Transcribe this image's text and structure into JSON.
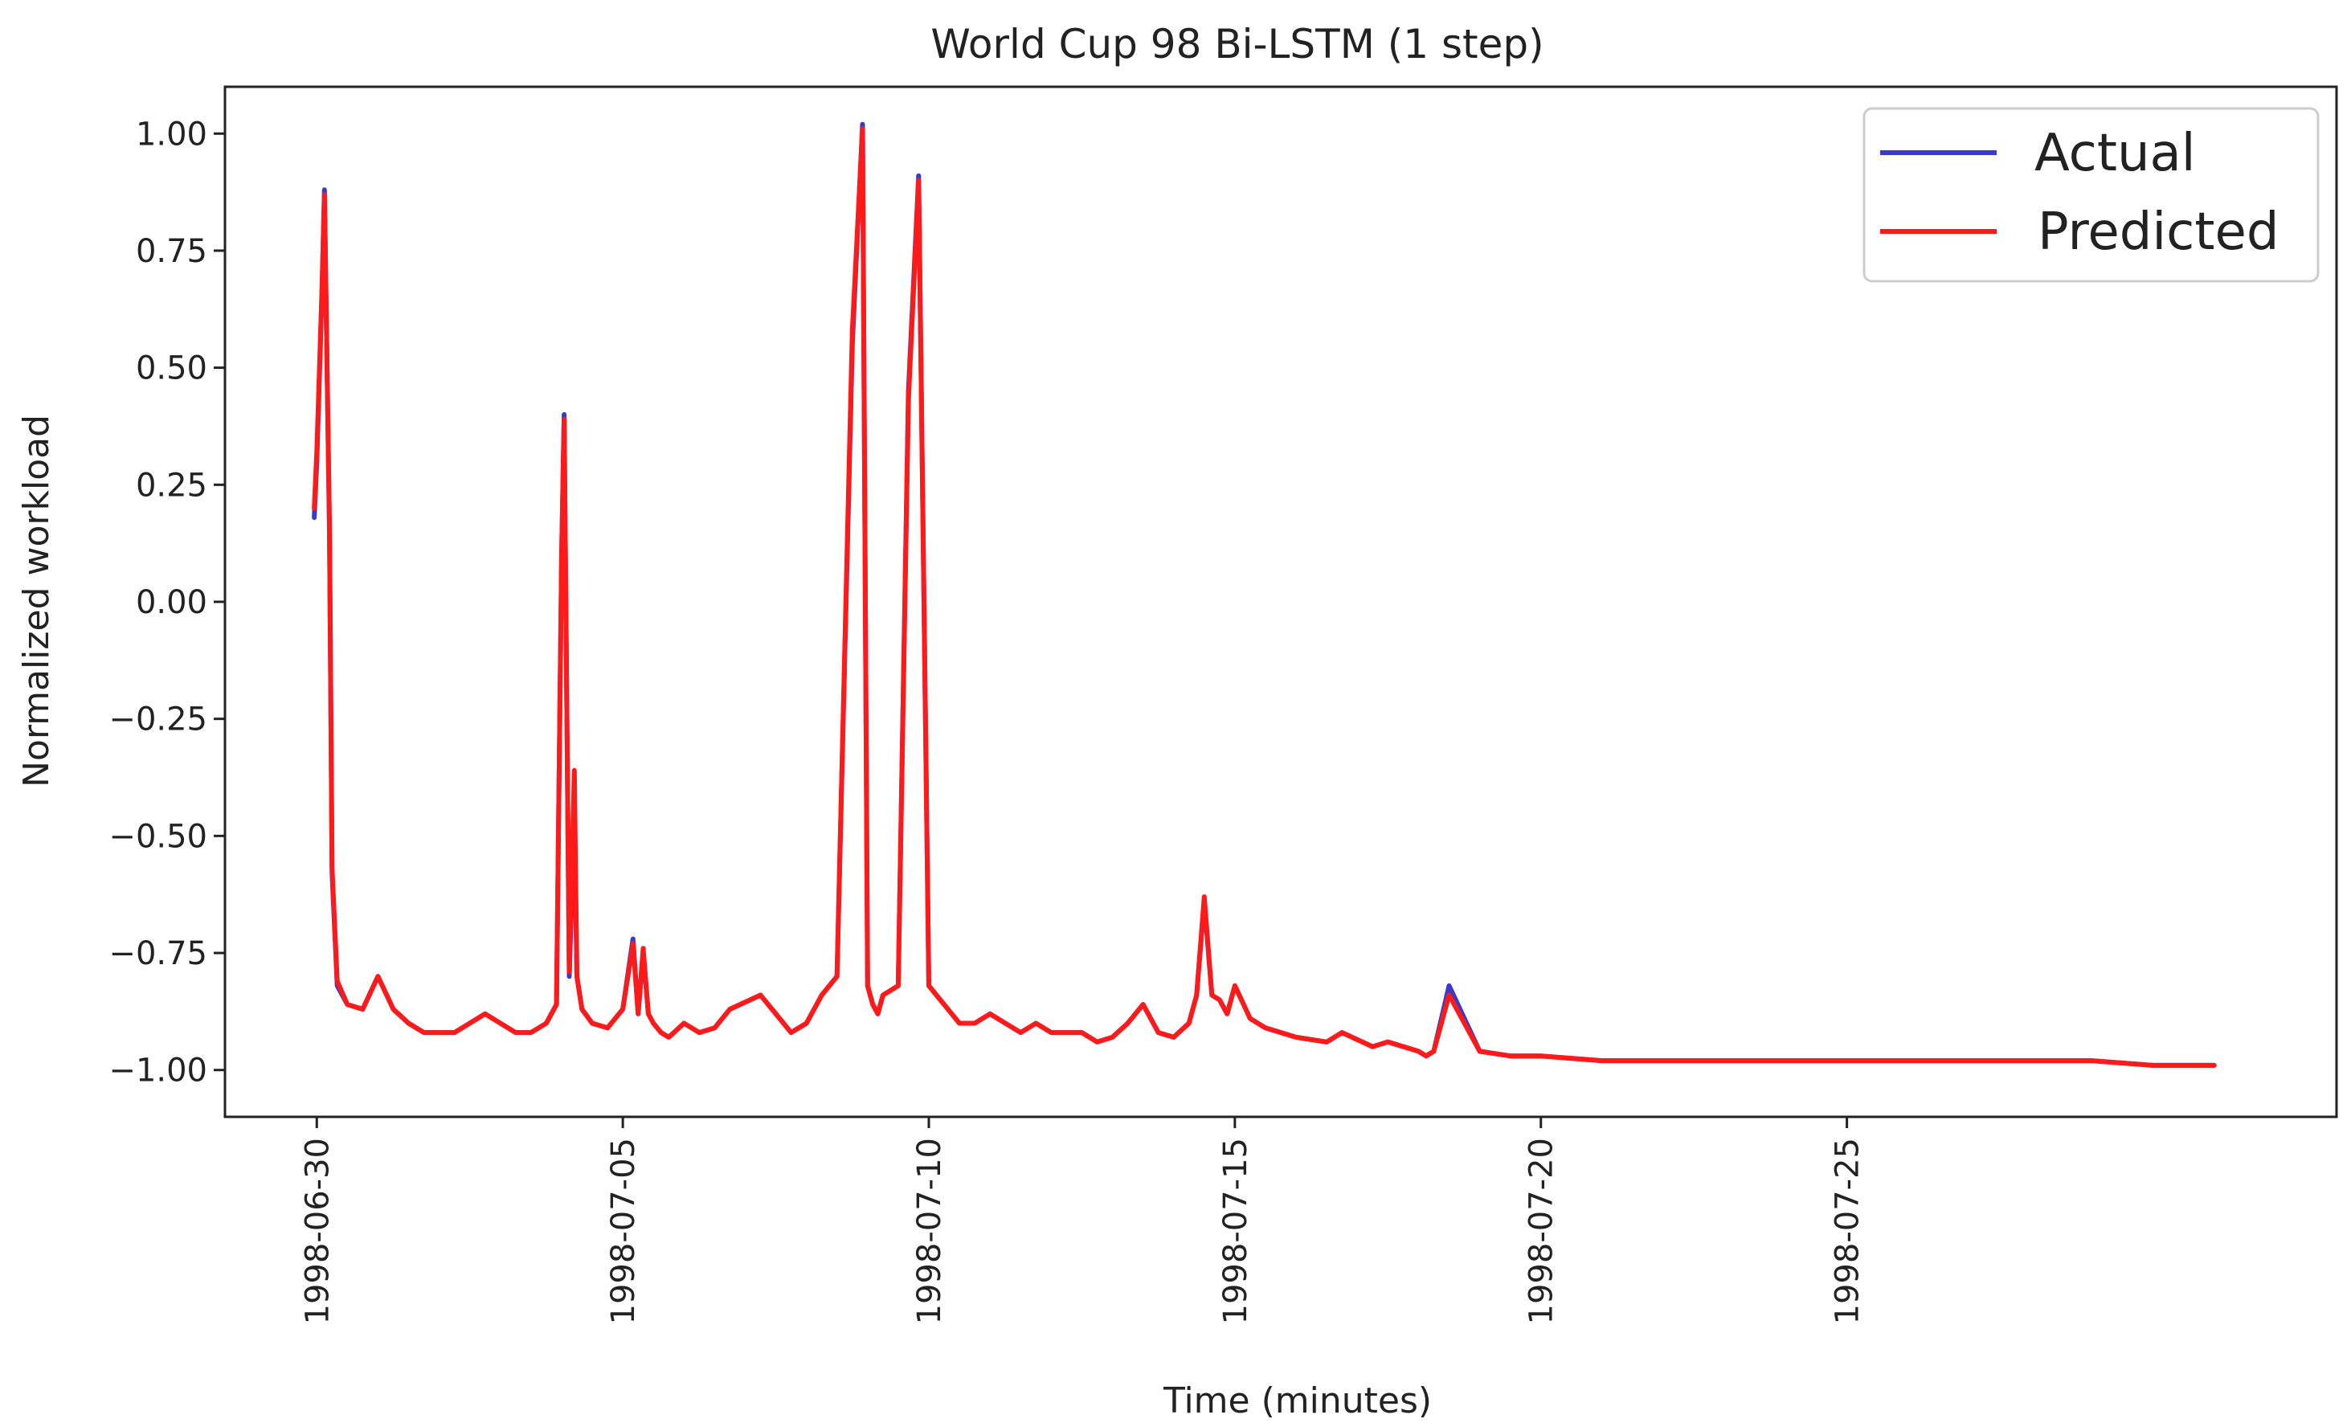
{
  "chart_data": {
    "type": "line",
    "title": "World Cup 98 Bi-LSTM (1 step)",
    "xlabel": "Time (minutes)",
    "ylabel": "Normalized workload",
    "xlim": [
      "1998-06-28 12:00",
      "1998-08-02 00:00"
    ],
    "ylim": [
      -1.1,
      1.1
    ],
    "yticks": [
      1.0,
      0.75,
      0.5,
      0.25,
      0.0,
      -0.25,
      -0.5,
      -0.75,
      -1.0
    ],
    "ytick_labels": [
      "1.00",
      "0.75",
      "0.50",
      "0.25",
      "0.00",
      "−0.25",
      "−0.50",
      "−0.75",
      "−1.00"
    ],
    "xticks": [
      "1998-06-30",
      "1998-07-05",
      "1998-07-10",
      "1998-07-15",
      "1998-07-20",
      "1998-07-25"
    ],
    "grid": false,
    "legend_position": "top-right",
    "series": [
      {
        "name": "Actual",
        "color": "#3b3bc9",
        "x": [
          "1998-06-29 23:00",
          "1998-06-30 00:00",
          "1998-06-30 02:00",
          "1998-06-30 03:00",
          "1998-06-30 05:00",
          "1998-06-30 06:00",
          "1998-06-30 08:00",
          "1998-06-30 12:00",
          "1998-06-30 18:00",
          "1998-07-01 00:00",
          "1998-07-01 06:00",
          "1998-07-01 12:00",
          "1998-07-01 18:00",
          "1998-07-02 06:00",
          "1998-07-02 18:00",
          "1998-07-03 00:00",
          "1998-07-03 06:00",
          "1998-07-03 12:00",
          "1998-07-03 18:00",
          "1998-07-03 22:00",
          "1998-07-04 00:00",
          "1998-07-04 01:00",
          "1998-07-04 03:00",
          "1998-07-04 05:00",
          "1998-07-04 06:00",
          "1998-07-04 08:00",
          "1998-07-04 12:00",
          "1998-07-04 18:00",
          "1998-07-05 00:00",
          "1998-07-05 04:00",
          "1998-07-05 06:00",
          "1998-07-05 08:00",
          "1998-07-05 10:00",
          "1998-07-05 12:00",
          "1998-07-05 15:00",
          "1998-07-05 18:00",
          "1998-07-06 00:00",
          "1998-07-06 06:00",
          "1998-07-06 12:00",
          "1998-07-06 18:00",
          "1998-07-07 06:00",
          "1998-07-07 12:00",
          "1998-07-07 18:00",
          "1998-07-08 00:00",
          "1998-07-08 06:00",
          "1998-07-08 12:00",
          "1998-07-08 18:00",
          "1998-07-08 22:00",
          "1998-07-09 00:00",
          "1998-07-09 02:00",
          "1998-07-09 04:00",
          "1998-07-09 06:00",
          "1998-07-09 12:00",
          "1998-07-09 16:00",
          "1998-07-09 20:00",
          "1998-07-10 00:00",
          "1998-07-10 06:00",
          "1998-07-10 12:00",
          "1998-07-10 18:00",
          "1998-07-11 00:00",
          "1998-07-11 06:00",
          "1998-07-11 12:00",
          "1998-07-11 18:00",
          "1998-07-12 00:00",
          "1998-07-12 12:00",
          "1998-07-12 18:00",
          "1998-07-13 00:00",
          "1998-07-13 06:00",
          "1998-07-13 12:00",
          "1998-07-13 18:00",
          "1998-07-14 00:00",
          "1998-07-14 06:00",
          "1998-07-14 09:00",
          "1998-07-14 12:00",
          "1998-07-14 15:00",
          "1998-07-14 18:00",
          "1998-07-14 21:00",
          "1998-07-15 00:00",
          "1998-07-15 06:00",
          "1998-07-15 12:00",
          "1998-07-16 00:00",
          "1998-07-16 12:00",
          "1998-07-16 18:00",
          "1998-07-17 06:00",
          "1998-07-17 12:00",
          "1998-07-18 00:00",
          "1998-07-18 03:00",
          "1998-07-18 06:00",
          "1998-07-18 12:00",
          "1998-07-19 00:00",
          "1998-07-19 12:00",
          "1998-07-20 00:00",
          "1998-07-21 00:00",
          "1998-07-22 00:00",
          "1998-07-23 00:00",
          "1998-07-24 00:00",
          "1998-07-25 00:00",
          "1998-07-26 00:00",
          "1998-07-27 00:00",
          "1998-07-28 00:00",
          "1998-07-29 00:00",
          "1998-07-30 00:00",
          "1998-07-31 00:00"
        ],
        "y": [
          0.18,
          0.3,
          0.65,
          0.88,
          0.14,
          -0.58,
          -0.82,
          -0.86,
          -0.87,
          -0.8,
          -0.87,
          -0.9,
          -0.92,
          -0.92,
          -0.88,
          -0.9,
          -0.92,
          -0.92,
          -0.9,
          -0.86,
          0.1,
          0.4,
          -0.8,
          -0.45,
          -0.8,
          -0.87,
          -0.9,
          -0.91,
          -0.87,
          -0.72,
          -0.88,
          -0.75,
          -0.88,
          -0.9,
          -0.92,
          -0.93,
          -0.9,
          -0.92,
          -0.91,
          -0.87,
          -0.84,
          -0.88,
          -0.92,
          -0.9,
          -0.84,
          -0.8,
          0.55,
          1.02,
          -0.82,
          -0.86,
          -0.88,
          -0.84,
          -0.82,
          0.45,
          0.91,
          -0.82,
          -0.86,
          -0.9,
          -0.9,
          -0.88,
          -0.9,
          -0.92,
          -0.9,
          -0.92,
          -0.92,
          -0.94,
          -0.93,
          -0.9,
          -0.86,
          -0.92,
          -0.93,
          -0.9,
          -0.84,
          -0.64,
          -0.84,
          -0.85,
          -0.88,
          -0.82,
          -0.89,
          -0.91,
          -0.93,
          -0.94,
          -0.92,
          -0.95,
          -0.94,
          -0.96,
          -0.97,
          -0.96,
          -0.82,
          -0.96,
          -0.97,
          -0.97,
          -0.98,
          -0.98,
          -0.98,
          -0.98,
          -0.98,
          -0.98,
          -0.98,
          -0.98,
          -0.98,
          -0.99,
          -0.99
        ]
      },
      {
        "name": "Predicted",
        "color": "#ff1a1a",
        "x": [
          "1998-06-29 23:00",
          "1998-06-30 00:00",
          "1998-06-30 02:00",
          "1998-06-30 03:00",
          "1998-06-30 05:00",
          "1998-06-30 06:00",
          "1998-06-30 08:00",
          "1998-06-30 12:00",
          "1998-06-30 18:00",
          "1998-07-01 00:00",
          "1998-07-01 06:00",
          "1998-07-01 12:00",
          "1998-07-01 18:00",
          "1998-07-02 06:00",
          "1998-07-02 18:00",
          "1998-07-03 00:00",
          "1998-07-03 06:00",
          "1998-07-03 12:00",
          "1998-07-03 18:00",
          "1998-07-03 22:00",
          "1998-07-04 00:00",
          "1998-07-04 01:00",
          "1998-07-04 03:00",
          "1998-07-04 05:00",
          "1998-07-04 06:00",
          "1998-07-04 08:00",
          "1998-07-04 12:00",
          "1998-07-04 18:00",
          "1998-07-05 00:00",
          "1998-07-05 04:00",
          "1998-07-05 06:00",
          "1998-07-05 08:00",
          "1998-07-05 10:00",
          "1998-07-05 12:00",
          "1998-07-05 15:00",
          "1998-07-05 18:00",
          "1998-07-06 00:00",
          "1998-07-06 06:00",
          "1998-07-06 12:00",
          "1998-07-06 18:00",
          "1998-07-07 06:00",
          "1998-07-07 12:00",
          "1998-07-07 18:00",
          "1998-07-08 00:00",
          "1998-07-08 06:00",
          "1998-07-08 12:00",
          "1998-07-08 18:00",
          "1998-07-08 22:00",
          "1998-07-09 00:00",
          "1998-07-09 02:00",
          "1998-07-09 04:00",
          "1998-07-09 06:00",
          "1998-07-09 12:00",
          "1998-07-09 16:00",
          "1998-07-09 20:00",
          "1998-07-10 00:00",
          "1998-07-10 06:00",
          "1998-07-10 12:00",
          "1998-07-10 18:00",
          "1998-07-11 00:00",
          "1998-07-11 06:00",
          "1998-07-11 12:00",
          "1998-07-11 18:00",
          "1998-07-12 00:00",
          "1998-07-12 12:00",
          "1998-07-12 18:00",
          "1998-07-13 00:00",
          "1998-07-13 06:00",
          "1998-07-13 12:00",
          "1998-07-13 18:00",
          "1998-07-14 00:00",
          "1998-07-14 06:00",
          "1998-07-14 09:00",
          "1998-07-14 12:00",
          "1998-07-14 15:00",
          "1998-07-14 18:00",
          "1998-07-14 21:00",
          "1998-07-15 00:00",
          "1998-07-15 06:00",
          "1998-07-15 12:00",
          "1998-07-16 00:00",
          "1998-07-16 12:00",
          "1998-07-16 18:00",
          "1998-07-17 06:00",
          "1998-07-17 12:00",
          "1998-07-18 00:00",
          "1998-07-18 03:00",
          "1998-07-18 06:00",
          "1998-07-18 12:00",
          "1998-07-19 00:00",
          "1998-07-19 12:00",
          "1998-07-20 00:00",
          "1998-07-21 00:00",
          "1998-07-22 00:00",
          "1998-07-23 00:00",
          "1998-07-24 00:00",
          "1998-07-25 00:00",
          "1998-07-26 00:00",
          "1998-07-27 00:00",
          "1998-07-28 00:00",
          "1998-07-29 00:00",
          "1998-07-30 00:00",
          "1998-07-31 00:00"
        ],
        "y": [
          0.2,
          0.32,
          0.66,
          0.87,
          0.16,
          -0.57,
          -0.81,
          -0.86,
          -0.87,
          -0.8,
          -0.87,
          -0.9,
          -0.92,
          -0.92,
          -0.88,
          -0.9,
          -0.92,
          -0.92,
          -0.9,
          -0.86,
          0.1,
          0.39,
          -0.79,
          -0.36,
          -0.8,
          -0.87,
          -0.9,
          -0.91,
          -0.87,
          -0.73,
          -0.88,
          -0.74,
          -0.88,
          -0.9,
          -0.92,
          -0.93,
          -0.9,
          -0.92,
          -0.91,
          -0.87,
          -0.84,
          -0.88,
          -0.92,
          -0.9,
          -0.84,
          -0.8,
          0.58,
          1.01,
          -0.82,
          -0.86,
          -0.88,
          -0.84,
          -0.82,
          0.43,
          0.9,
          -0.82,
          -0.86,
          -0.9,
          -0.9,
          -0.88,
          -0.9,
          -0.92,
          -0.9,
          -0.92,
          -0.92,
          -0.94,
          -0.93,
          -0.9,
          -0.86,
          -0.92,
          -0.93,
          -0.9,
          -0.84,
          -0.63,
          -0.84,
          -0.85,
          -0.88,
          -0.82,
          -0.89,
          -0.91,
          -0.93,
          -0.94,
          -0.92,
          -0.95,
          -0.94,
          -0.96,
          -0.97,
          -0.96,
          -0.84,
          -0.96,
          -0.97,
          -0.97,
          -0.98,
          -0.98,
          -0.98,
          -0.98,
          -0.98,
          -0.98,
          -0.98,
          -0.98,
          -0.98,
          -0.99,
          -0.99
        ]
      }
    ]
  }
}
